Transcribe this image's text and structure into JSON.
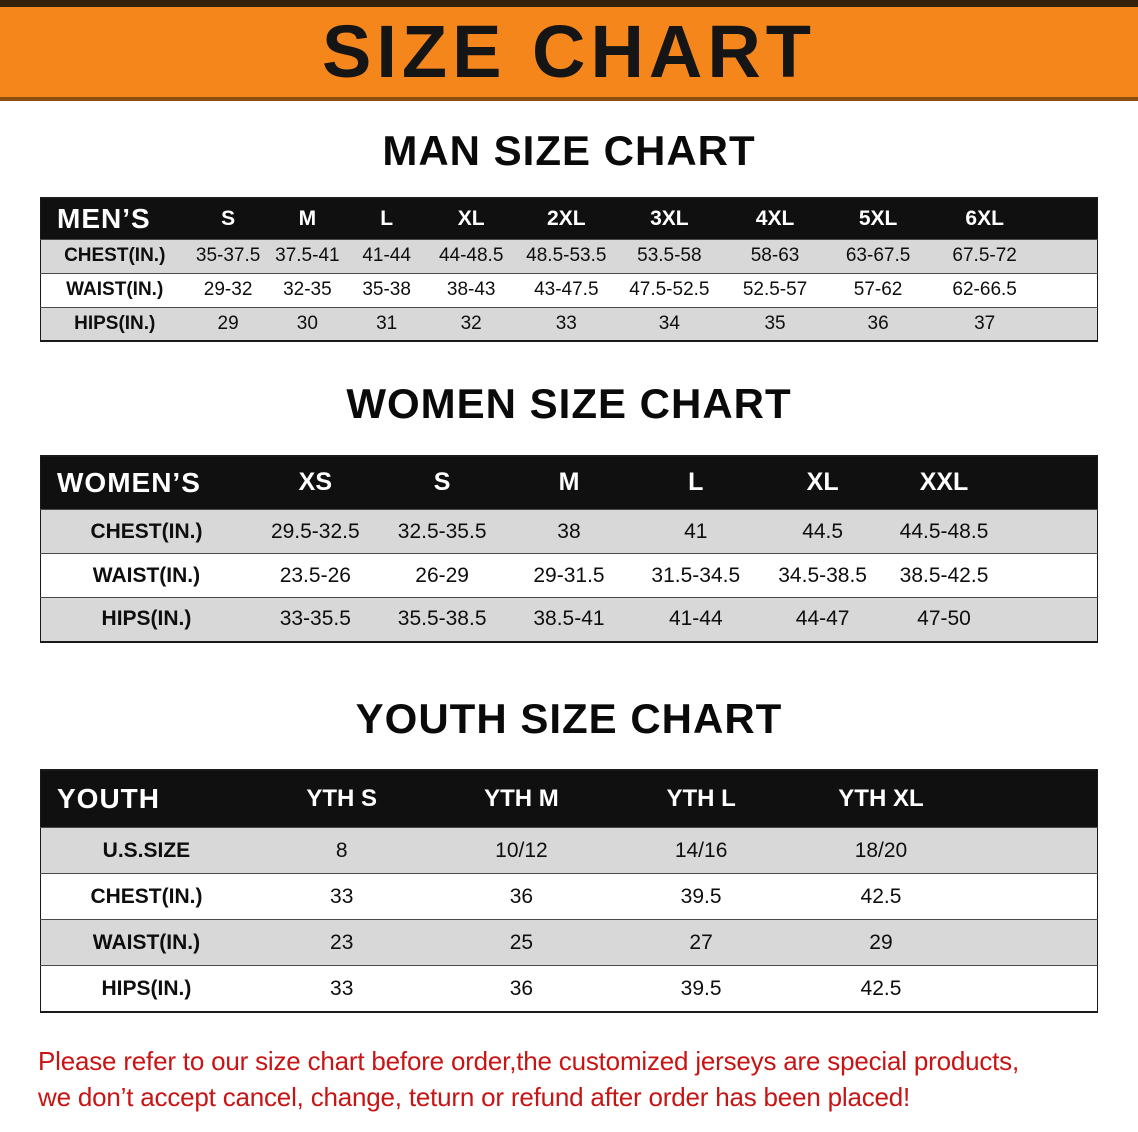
{
  "banner": {
    "title": "SIZE CHART"
  },
  "sections": {
    "men": {
      "heading": "MAN SIZE CHART",
      "table": {
        "header": [
          "MEN’S",
          "S",
          "M",
          "L",
          "XL",
          "2XL",
          "3XL",
          "4XL",
          "5XL",
          "6XL"
        ],
        "rows": [
          [
            "CHEST(IN.)",
            "35-37.5",
            "37.5-41",
            "41-44",
            "44-48.5",
            "48.5-53.5",
            "53.5-58",
            "58-63",
            "63-67.5",
            "67.5-72"
          ],
          [
            "WAIST(IN.)",
            "29-32",
            "32-35",
            "35-38",
            "38-43",
            "43-47.5",
            "47.5-52.5",
            "52.5-57",
            "57-62",
            "62-66.5"
          ],
          [
            "HIPS(IN.)",
            "29",
            "30",
            "31",
            "32",
            "33",
            "34",
            "35",
            "36",
            "37"
          ]
        ]
      }
    },
    "women": {
      "heading": "WOMEN SIZE CHART",
      "table": {
        "header": [
          "WOMEN’S",
          "XS",
          "S",
          "M",
          "L",
          "XL",
          "XXL"
        ],
        "rows": [
          [
            "CHEST(IN.)",
            "29.5-32.5",
            "32.5-35.5",
            "38",
            "41",
            "44.5",
            "44.5-48.5"
          ],
          [
            "WAIST(IN.)",
            "23.5-26",
            "26-29",
            "29-31.5",
            "31.5-34.5",
            "34.5-38.5",
            "38.5-42.5"
          ],
          [
            "HIPS(IN.)",
            "33-35.5",
            "35.5-38.5",
            "38.5-41",
            "41-44",
            "44-47",
            "47-50"
          ]
        ]
      }
    },
    "youth": {
      "heading": "YOUTH SIZE CHART",
      "table": {
        "header": [
          "YOUTH",
          "YTH S",
          "YTH M",
          "YTH L",
          "YTH XL"
        ],
        "rows": [
          [
            "U.S.SIZE",
            "8",
            "10/12",
            "14/16",
            "18/20"
          ],
          [
            "CHEST(IN.)",
            "33",
            "36",
            "39.5",
            "42.5"
          ],
          [
            "WAIST(IN.)",
            "23",
            "25",
            "27",
            "29"
          ],
          [
            "HIPS(IN.)",
            "33",
            "36",
            "39.5",
            "42.5"
          ]
        ]
      }
    }
  },
  "footer": {
    "line1": "Please refer to our size chart before order,the customized jerseys are special products,",
    "line2": "we don’t accept cancel, change, teturn or refund after order has been placed!"
  },
  "colors": {
    "banner_bg": "#F5861C",
    "banner_edge_top": "#33210C",
    "banner_edge_bottom": "#8A4F10",
    "table_header_bg": "#101010",
    "table_header_text": "#FFFFFF",
    "row_alt": "#D8D8D8",
    "row_line": "#4A4A4A",
    "heading_text": "#0A0A0A",
    "note_red": "#C81414"
  }
}
